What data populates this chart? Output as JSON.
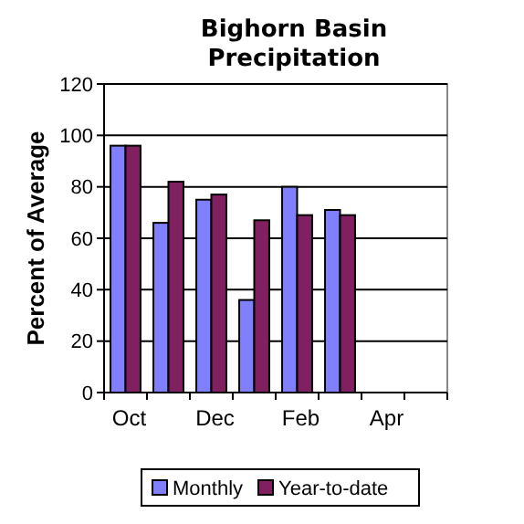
{
  "chart_data": {
    "type": "bar",
    "title": "Bighorn Basin Precipitation",
    "ylabel": "Percent of Average",
    "categories": [
      "Oct",
      null,
      "Dec",
      null,
      "Feb",
      null,
      "Apr",
      null
    ],
    "series": [
      {
        "name": "Monthly",
        "color": "#8080ff",
        "values": [
          96,
          66,
          75,
          36,
          80,
          71,
          null,
          null
        ]
      },
      {
        "name": "Year-to-date",
        "color": "#802060",
        "values": [
          96,
          82,
          77,
          67,
          69,
          69,
          null,
          null
        ]
      }
    ],
    "ylim": [
      0,
      120
    ],
    "yticks": [
      0,
      20,
      40,
      60,
      80,
      100,
      120
    ],
    "grid": "y",
    "legend": "bottom"
  }
}
